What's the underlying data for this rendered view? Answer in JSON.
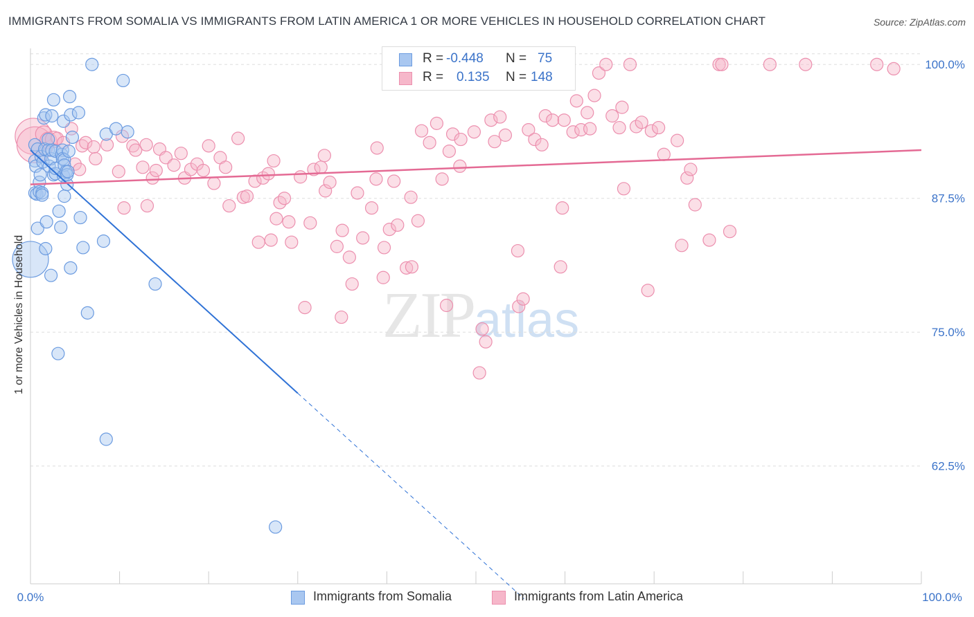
{
  "title": "IMMIGRANTS FROM SOMALIA VS IMMIGRANTS FROM LATIN AMERICA 1 OR MORE VEHICLES IN HOUSEHOLD CORRELATION CHART",
  "source": "Source: ZipAtlas.com",
  "watermark": {
    "zip": "ZIP",
    "atlas": "atlas"
  },
  "legend": {
    "rows": [
      {
        "r_label": "R =",
        "r_value": "-0.448",
        "n_label": "N =",
        "n_value": "75"
      },
      {
        "r_label": "R =",
        "r_value": "0.135",
        "n_label": "N =",
        "n_value": "148"
      }
    ]
  },
  "bottom_legend": [
    "Immigrants from Somalia",
    "Immigrants from Latin America"
  ],
  "colors": {
    "somalia_fill": "#a9c7f0",
    "somalia_stroke": "#6b9be0",
    "somalia_line": "#2f72d6",
    "latam_fill": "#f6b7ca",
    "latam_stroke": "#ec8fae",
    "latam_line": "#e46a94",
    "tick_label": "#3b73c9",
    "grid": "#dddddd"
  },
  "chart_data": {
    "type": "scatter",
    "title": "IMMIGRANTS FROM SOMALIA VS IMMIGRANTS FROM LATIN AMERICA 1 OR MORE VEHICLES IN HOUSEHOLD CORRELATION CHART",
    "xlabel": "",
    "ylabel": "1 or more Vehicles in Household",
    "xlim": [
      0,
      100
    ],
    "ylim": [
      51.5,
      101.5
    ],
    "x_tick_labels": [
      "0.0%",
      "100.0%"
    ],
    "y_ticks": [
      100,
      87.5,
      75,
      62.5
    ],
    "y_tick_labels": [
      "100.0%",
      "87.5%",
      "75.0%",
      "62.5%"
    ],
    "grid": true,
    "legend_position": "top-center",
    "series": [
      {
        "name": "Immigrants from Somalia",
        "r": -0.448,
        "n": 75,
        "trend": {
          "x0": 0,
          "y0": 92.0,
          "x1": 30,
          "y1": 69.3,
          "dashed_to_x": 55.4,
          "dashed_to_y": 50.1
        },
        "points": [
          [
            0,
            81.8,
            "L"
          ],
          [
            0.5,
            92.5
          ],
          [
            0.5,
            91.0
          ],
          [
            0.5,
            88.0
          ],
          [
            0.6,
            90.5
          ],
          [
            0.7,
            87.9
          ],
          [
            0.8,
            92.1
          ],
          [
            0.8,
            84.7
          ],
          [
            1.0,
            89.0
          ],
          [
            1.0,
            88.1
          ],
          [
            1.1,
            89.7
          ],
          [
            1.2,
            91.4
          ],
          [
            1.3,
            88.0
          ],
          [
            1.3,
            87.8
          ],
          [
            1.4,
            90.9
          ],
          [
            1.5,
            95.0
          ],
          [
            1.6,
            92.1
          ],
          [
            1.7,
            95.3
          ],
          [
            1.7,
            82.8
          ],
          [
            1.8,
            85.3
          ],
          [
            2.0,
            93.0
          ],
          [
            2.0,
            92.0
          ],
          [
            2.1,
            90.5
          ],
          [
            2.3,
            80.3
          ],
          [
            2.3,
            91.2
          ],
          [
            2.4,
            92.0
          ],
          [
            2.4,
            95.2
          ],
          [
            2.6,
            96.7
          ],
          [
            2.6,
            89.7
          ],
          [
            2.8,
            91.9
          ],
          [
            2.8,
            89.8
          ],
          [
            2.8,
            90.3
          ],
          [
            3.1,
            73.0
          ],
          [
            3.2,
            86.3
          ],
          [
            3.4,
            84.8
          ],
          [
            3.5,
            91.6
          ],
          [
            3.6,
            92.0
          ],
          [
            3.6,
            91.2
          ],
          [
            3.7,
            89.6
          ],
          [
            3.7,
            94.7
          ],
          [
            3.8,
            91.1
          ],
          [
            3.8,
            87.7
          ],
          [
            3.8,
            90.6
          ],
          [
            4.0,
            90.0
          ],
          [
            4.1,
            88.8
          ],
          [
            4.1,
            89.7
          ],
          [
            4.2,
            90.0
          ],
          [
            4.3,
            91.9
          ],
          [
            4.4,
            97.0
          ],
          [
            4.5,
            81.0
          ],
          [
            4.5,
            95.3
          ],
          [
            4.7,
            93.2
          ],
          [
            5.4,
            95.5
          ],
          [
            5.6,
            85.7
          ],
          [
            5.9,
            82.9
          ],
          [
            6.4,
            76.8
          ],
          [
            6.9,
            100.0
          ],
          [
            8.2,
            83.5
          ],
          [
            8.5,
            65.0
          ],
          [
            8.5,
            93.5
          ],
          [
            9.6,
            94.0
          ],
          [
            10.4,
            98.5
          ],
          [
            10.9,
            93.7
          ],
          [
            14.0,
            79.5
          ],
          [
            27.5,
            56.8
          ]
        ]
      },
      {
        "name": "Immigrants from Latin America",
        "r": 0.135,
        "n": 148,
        "trend": {
          "x0": 0,
          "y0": 88.8,
          "x1": 100,
          "y1": 92.0
        },
        "points": [
          [
            0.3,
            93.3,
            "L"
          ],
          [
            0.5,
            92.5,
            "L"
          ],
          [
            1.5,
            93.5,
            "M"
          ],
          [
            2.0,
            92.9,
            "M"
          ],
          [
            2.6,
            93.0,
            "M"
          ],
          [
            3.0,
            93.1
          ],
          [
            3.7,
            92.7
          ],
          [
            4.6,
            94.0
          ],
          [
            5.0,
            90.7
          ],
          [
            5.5,
            90.2
          ],
          [
            5.8,
            92.4
          ],
          [
            6.2,
            92.7
          ],
          [
            7.1,
            92.3
          ],
          [
            7.3,
            91.2
          ],
          [
            8.6,
            92.5
          ],
          [
            9.9,
            90.0
          ],
          [
            10.3,
            93.3
          ],
          [
            10.5,
            86.6
          ],
          [
            11.5,
            92.4
          ],
          [
            11.8,
            92.0
          ],
          [
            12.6,
            90.4
          ],
          [
            13.0,
            92.5
          ],
          [
            13.1,
            86.8
          ],
          [
            13.7,
            89.4
          ],
          [
            14.1,
            90.1
          ],
          [
            14.5,
            92.1
          ],
          [
            15.2,
            91.3
          ],
          [
            16.1,
            90.6
          ],
          [
            16.9,
            91.7
          ],
          [
            17.3,
            89.4
          ],
          [
            18.0,
            90.2
          ],
          [
            18.7,
            90.7
          ],
          [
            19.4,
            90.1
          ],
          [
            20.0,
            92.4
          ],
          [
            20.6,
            88.9
          ],
          [
            21.3,
            91.3
          ],
          [
            21.9,
            90.4
          ],
          [
            22.3,
            86.8
          ],
          [
            23.3,
            93.1
          ],
          [
            23.9,
            87.6
          ],
          [
            24.3,
            87.7
          ],
          [
            25.2,
            89.1
          ],
          [
            25.6,
            83.4
          ],
          [
            26.1,
            89.4
          ],
          [
            26.7,
            89.8
          ],
          [
            27.0,
            83.6
          ],
          [
            27.3,
            91.0
          ],
          [
            27.6,
            85.6
          ],
          [
            28.0,
            87.1
          ],
          [
            28.5,
            87.5
          ],
          [
            29.0,
            85.3
          ],
          [
            29.3,
            83.4
          ],
          [
            30.3,
            89.5
          ],
          [
            30.8,
            77.3
          ],
          [
            31.4,
            85.2
          ],
          [
            31.8,
            90.2
          ],
          [
            32.6,
            90.4
          ],
          [
            33.0,
            91.5
          ],
          [
            33.1,
            88.2
          ],
          [
            33.6,
            89.0
          ],
          [
            34.4,
            83.0
          ],
          [
            34.9,
            76.4
          ],
          [
            35.0,
            84.5
          ],
          [
            35.8,
            82.0
          ],
          [
            36.1,
            79.5
          ],
          [
            36.7,
            88.0
          ],
          [
            37.3,
            83.8
          ],
          [
            38.3,
            86.6
          ],
          [
            38.8,
            89.3
          ],
          [
            38.9,
            92.2
          ],
          [
            39.6,
            80.1
          ],
          [
            39.7,
            82.9
          ],
          [
            40.3,
            84.6
          ],
          [
            40.8,
            89.1
          ],
          [
            41.2,
            85.0
          ],
          [
            42.2,
            81.0
          ],
          [
            42.7,
            87.6
          ],
          [
            42.8,
            81.1
          ],
          [
            43.5,
            85.4
          ],
          [
            43.9,
            93.8
          ],
          [
            44.8,
            92.7
          ],
          [
            45.6,
            94.5
          ],
          [
            46.2,
            89.3
          ],
          [
            46.7,
            77.5
          ],
          [
            47.0,
            91.9
          ],
          [
            47.4,
            93.5
          ],
          [
            48.2,
            90.5
          ],
          [
            48.3,
            93.0
          ],
          [
            49.8,
            93.7
          ],
          [
            50.4,
            71.2
          ],
          [
            50.7,
            75.3
          ],
          [
            51.1,
            74.1
          ],
          [
            51.7,
            94.8
          ],
          [
            52.1,
            92.8
          ],
          [
            52.7,
            95.1
          ],
          [
            53.3,
            93.4
          ],
          [
            54.7,
            82.6
          ],
          [
            54.8,
            77.4
          ],
          [
            55.3,
            78.1
          ],
          [
            55.9,
            93.9
          ],
          [
            56.6,
            93.0
          ],
          [
            57.4,
            92.5
          ],
          [
            57.8,
            95.2
          ],
          [
            58.6,
            94.8
          ],
          [
            59.5,
            81.1
          ],
          [
            59.7,
            86.6
          ],
          [
            59.9,
            94.8
          ],
          [
            60.9,
            93.7
          ],
          [
            61.3,
            96.6
          ],
          [
            61.8,
            93.9
          ],
          [
            62.5,
            95.5
          ],
          [
            62.8,
            94.0
          ],
          [
            63.3,
            97.1
          ],
          [
            63.8,
            99.2
          ],
          [
            64.6,
            100.0
          ],
          [
            65.3,
            95.2
          ],
          [
            66.1,
            94.1
          ],
          [
            66.4,
            96.0
          ],
          [
            66.6,
            88.4
          ],
          [
            67.3,
            100.0
          ],
          [
            68.0,
            94.2
          ],
          [
            68.6,
            94.6
          ],
          [
            69.3,
            78.9
          ],
          [
            69.7,
            93.8
          ],
          [
            70.5,
            94.1
          ],
          [
            71.1,
            91.6
          ],
          [
            72.6,
            92.9
          ],
          [
            73.1,
            83.1
          ],
          [
            73.7,
            89.4
          ],
          [
            74.1,
            90.2
          ],
          [
            74.6,
            86.9
          ],
          [
            76.2,
            83.6
          ],
          [
            77.3,
            100.0
          ],
          [
            77.6,
            100.0
          ],
          [
            78.5,
            84.4
          ],
          [
            83.0,
            100.0
          ],
          [
            87.0,
            100.0
          ],
          [
            95.0,
            100.0
          ],
          [
            96.9,
            99.6
          ]
        ]
      }
    ]
  }
}
